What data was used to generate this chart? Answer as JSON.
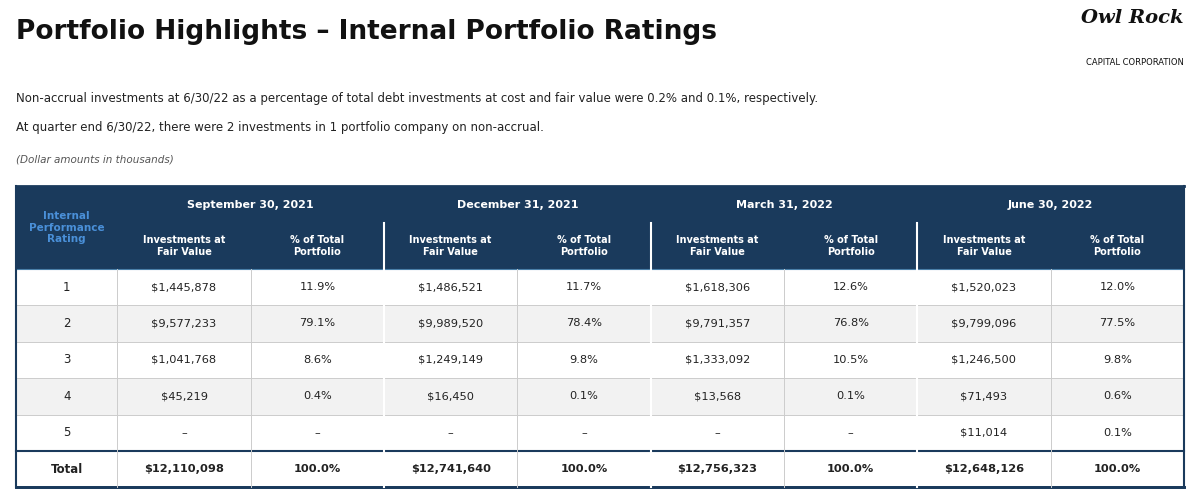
{
  "title": "Portfolio Highlights – Internal Portfolio Ratings",
  "subtitle_line1": "Non-accrual investments at 6/30/22 as a percentage of total debt investments at cost and fair value were 0.2% and 0.1%, respectively.",
  "subtitle_line2": "At quarter end 6/30/22, there were 2 investments in 1 portfolio company on non-accrual.",
  "dollar_note": "(Dollar amounts in thousands)",
  "header_bg": "#1a3a5c",
  "header_text": "#ffffff",
  "subheader_bg": "#1a3a5c",
  "row_bg_odd": "#ffffff",
  "row_bg_even": "#f2f2f2",
  "col0_header_color": "#2a5f9e",
  "periods": [
    "September 30, 2021",
    "December 31, 2021",
    "March 31, 2022",
    "June 30, 2022"
  ],
  "col_headers": [
    "Investments at\nFair Value",
    "% of Total\nPortfolio"
  ],
  "row_labels": [
    "1",
    "2",
    "3",
    "4",
    "5",
    "Total"
  ],
  "table_data": [
    [
      "$1,445,878",
      "11.9%",
      "$1,486,521",
      "11.7%",
      "$1,618,306",
      "12.6%",
      "$1,520,023",
      "12.0%"
    ],
    [
      "$9,577,233",
      "79.1%",
      "$9,989,520",
      "78.4%",
      "$9,791,357",
      "76.8%",
      "$9,799,096",
      "77.5%"
    ],
    [
      "$1,041,768",
      "8.6%",
      "$1,249,149",
      "9.8%",
      "$1,333,092",
      "10.5%",
      "$1,246,500",
      "9.8%"
    ],
    [
      "$45,219",
      "0.4%",
      "$16,450",
      "0.1%",
      "$13,568",
      "0.1%",
      "$71,493",
      "0.6%"
    ],
    [
      "–",
      "–",
      "–",
      "–",
      "–",
      "–",
      "$11,014",
      "0.1%"
    ],
    [
      "$12,110,098",
      "100.0%",
      "$12,741,640",
      "100.0%",
      "$12,756,323",
      "100.0%",
      "$12,648,126",
      "100.0%"
    ]
  ],
  "owl_rock_text": "Owl Rock",
  "capital_corp_text": "CAPITAL CORPORATION",
  "background_color": "#ffffff"
}
